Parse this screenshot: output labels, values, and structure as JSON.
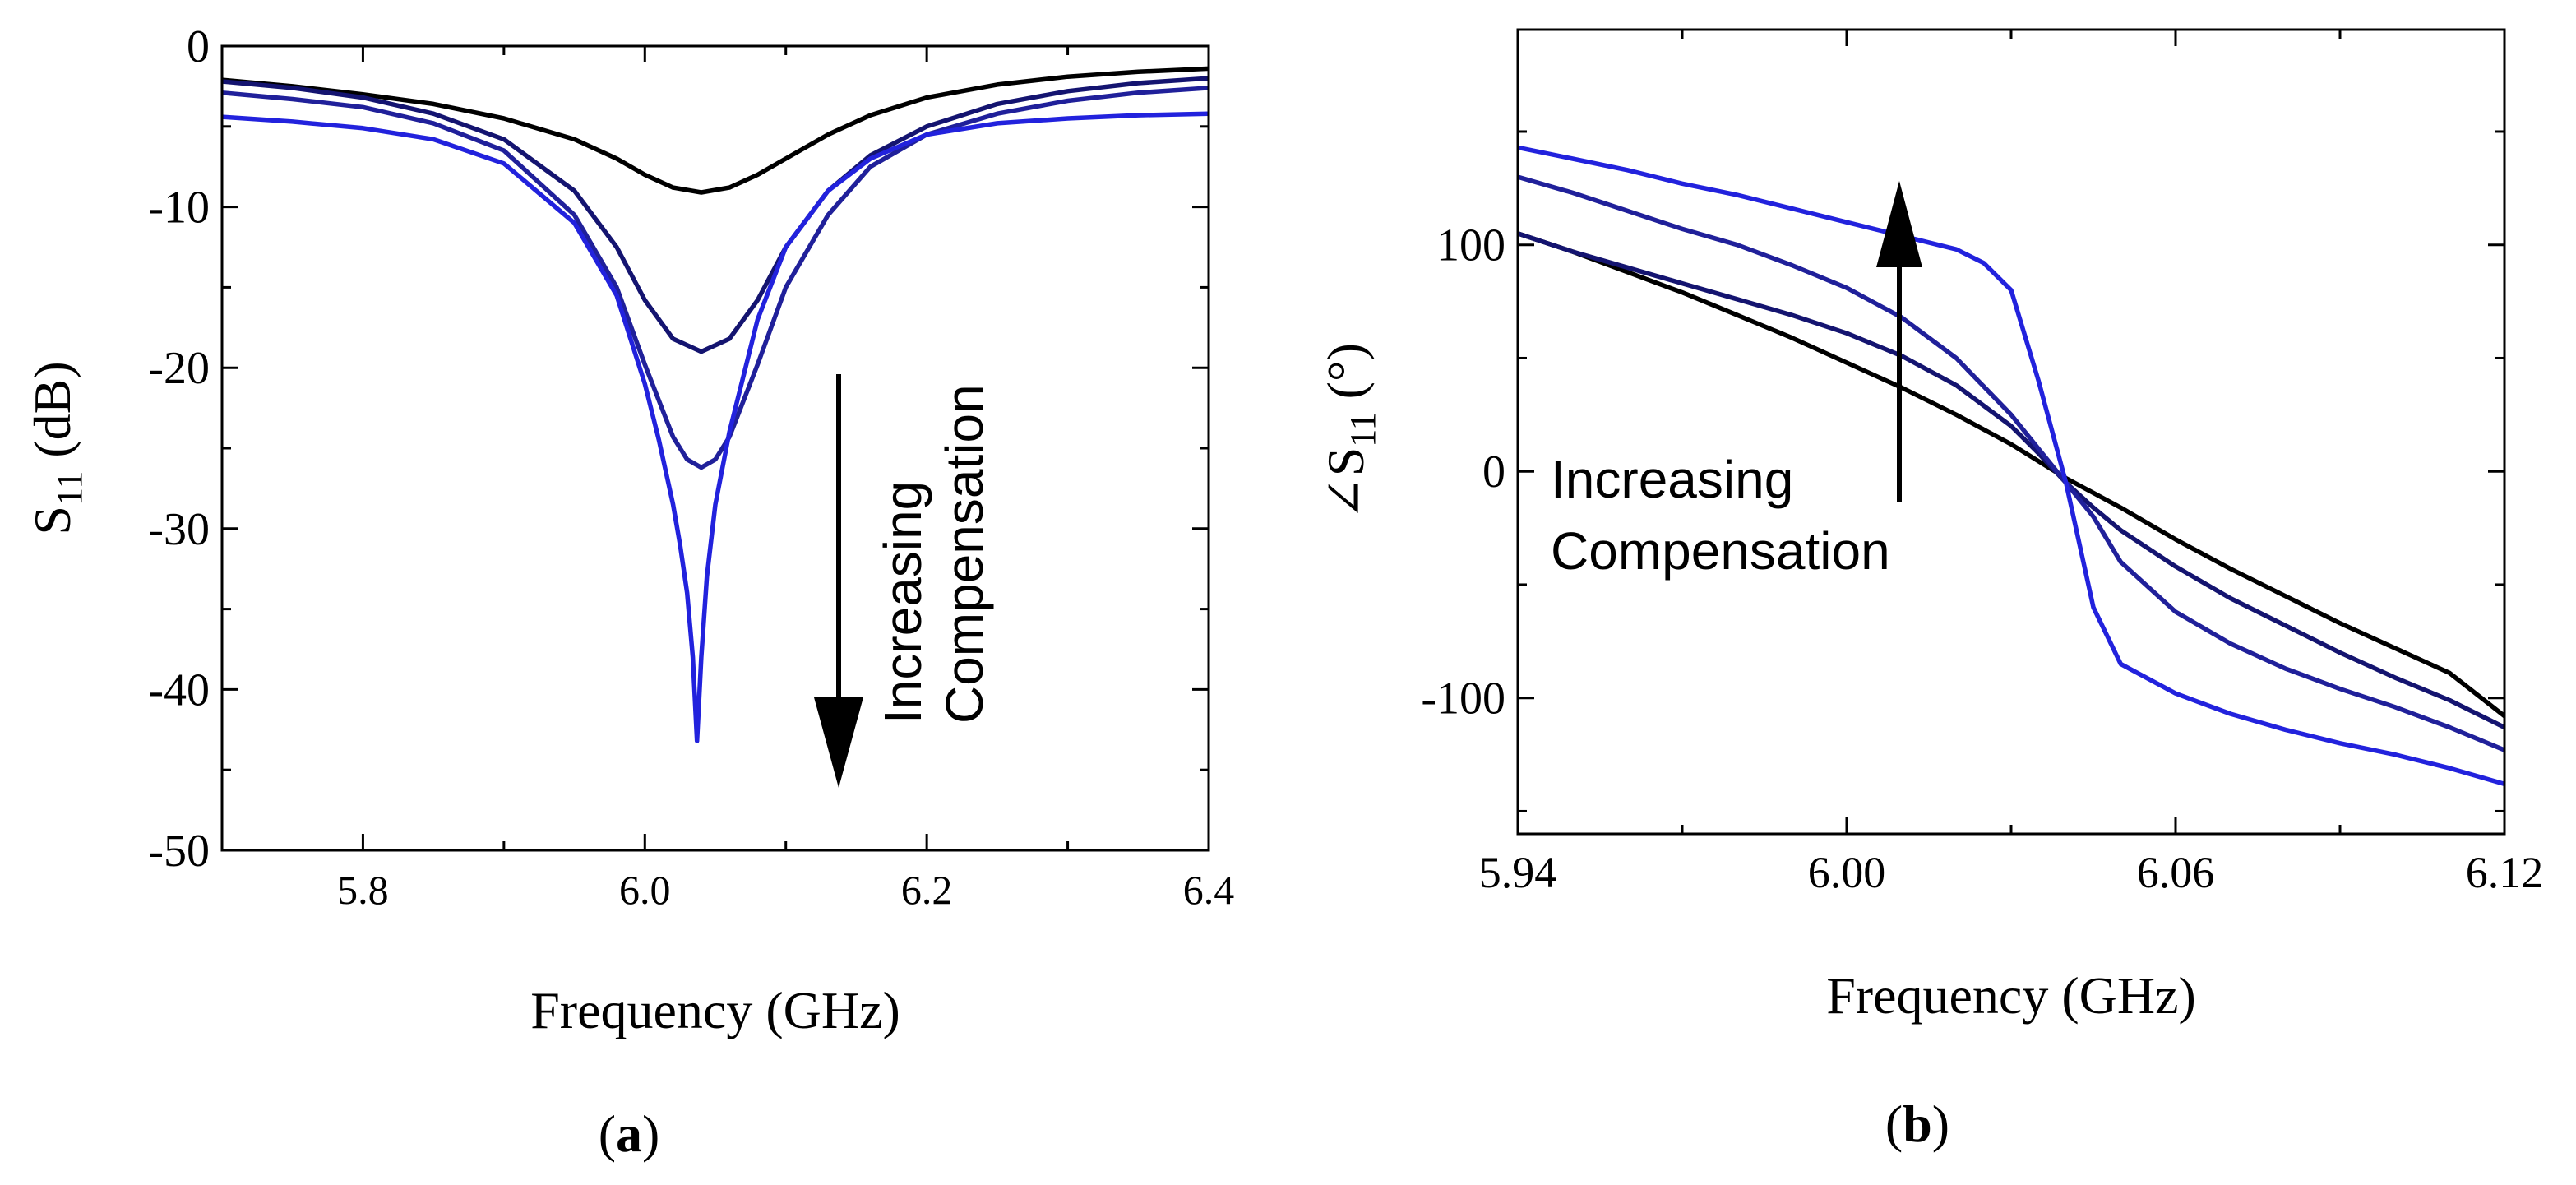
{
  "chart_data": [
    {
      "type": "line",
      "panel_label": "a",
      "xlabel": "Frequency (GHz)",
      "ylabel_main": "S",
      "ylabel_sub": "11",
      "ylabel_unit": " (dB)",
      "xlim": [
        5.7,
        6.4
      ],
      "ylim": [
        -50,
        0
      ],
      "xticks": [
        5.8,
        6.0,
        6.2,
        6.4
      ],
      "xtick_labels": [
        "5.8",
        "6.0",
        "6.2",
        "6.4"
      ],
      "yticks": [
        0,
        -10,
        -20,
        -30,
        -40,
        -50
      ],
      "ytick_labels": [
        "0",
        "-10",
        "-20",
        "-30",
        "-40",
        "-50"
      ],
      "annotation": [
        "Increasing",
        "Compensation"
      ],
      "series": [
        {
          "color": "#000000",
          "x": [
            5.7,
            5.75,
            5.8,
            5.85,
            5.9,
            5.95,
            5.98,
            6.0,
            6.02,
            6.04,
            6.06,
            6.08,
            6.1,
            6.13,
            6.16,
            6.2,
            6.25,
            6.3,
            6.35,
            6.4
          ],
          "values": [
            -2.1,
            -2.5,
            -3.0,
            -3.6,
            -4.5,
            -5.8,
            -7.0,
            -8.0,
            -8.8,
            -9.1,
            -8.8,
            -8.0,
            -7.0,
            -5.5,
            -4.3,
            -3.2,
            -2.4,
            -1.9,
            -1.6,
            -1.4
          ]
        },
        {
          "color": "#141470",
          "x": [
            5.7,
            5.75,
            5.8,
            5.85,
            5.9,
            5.95,
            5.98,
            6.0,
            6.02,
            6.04,
            6.06,
            6.08,
            6.1,
            6.13,
            6.16,
            6.2,
            6.25,
            6.3,
            6.35,
            6.4
          ],
          "values": [
            -2.2,
            -2.6,
            -3.2,
            -4.2,
            -5.8,
            -9.0,
            -12.5,
            -15.8,
            -18.2,
            -19.0,
            -18.2,
            -15.8,
            -12.5,
            -9.0,
            -6.8,
            -5.0,
            -3.6,
            -2.8,
            -2.3,
            -2.0
          ]
        },
        {
          "color": "#20209a",
          "x": [
            5.7,
            5.75,
            5.8,
            5.85,
            5.9,
            5.95,
            5.98,
            6.0,
            6.02,
            6.03,
            6.04,
            6.05,
            6.06,
            6.08,
            6.1,
            6.13,
            6.16,
            6.2,
            6.25,
            6.3,
            6.35,
            6.4
          ],
          "values": [
            -2.9,
            -3.3,
            -3.8,
            -4.8,
            -6.5,
            -10.5,
            -15.0,
            -19.8,
            -24.3,
            -25.7,
            -26.2,
            -25.7,
            -24.3,
            -19.8,
            -15.0,
            -10.5,
            -7.5,
            -5.5,
            -4.2,
            -3.4,
            -2.9,
            -2.6
          ]
        },
        {
          "color": "#2222dd",
          "x": [
            5.7,
            5.75,
            5.8,
            5.85,
            5.9,
            5.95,
            5.98,
            6.0,
            6.01,
            6.02,
            6.025,
            6.03,
            6.034,
            6.037,
            6.04,
            6.044,
            6.05,
            6.06,
            6.08,
            6.1,
            6.13,
            6.16,
            6.2,
            6.25,
            6.3,
            6.35,
            6.4
          ],
          "values": [
            -4.4,
            -4.7,
            -5.1,
            -5.8,
            -7.3,
            -11.0,
            -15.5,
            -21.0,
            -24.5,
            -28.5,
            -31.0,
            -34.0,
            -38.0,
            -43.2,
            -38.0,
            -33.0,
            -28.5,
            -24.0,
            -17.0,
            -12.5,
            -9.0,
            -7.0,
            -5.5,
            -4.8,
            -4.5,
            -4.3,
            -4.2
          ]
        }
      ]
    },
    {
      "type": "line",
      "panel_label": "b",
      "xlabel": "Frequency (GHz)",
      "ylabel_main": "∠S",
      "ylabel_sub": "11",
      "ylabel_unit": " (°)",
      "xlim": [
        5.94,
        6.12
      ],
      "ylim": [
        -160,
        195
      ],
      "xticks": [
        5.94,
        6.0,
        6.06,
        6.12
      ],
      "xtick_labels": [
        "5.94",
        "6.00",
        "6.06",
        "6.12"
      ],
      "yticks": [
        100,
        0,
        -100
      ],
      "ytick_labels": [
        "100",
        "0",
        "-100"
      ],
      "annotation": [
        "Increasing",
        "Compensation"
      ],
      "series": [
        {
          "color": "#000000",
          "x": [
            5.94,
            5.95,
            5.96,
            5.97,
            5.98,
            5.99,
            6.0,
            6.01,
            6.02,
            6.03,
            6.04,
            6.05,
            6.06,
            6.07,
            6.08,
            6.09,
            6.1,
            6.11,
            6.12
          ],
          "values": [
            105,
            97,
            88,
            79,
            69,
            59,
            48,
            37,
            25,
            12,
            -3,
            -16,
            -30,
            -43,
            -55,
            -67,
            -78,
            -89,
            -108
          ]
        },
        {
          "color": "#141470",
          "x": [
            5.94,
            5.95,
            5.96,
            5.97,
            5.98,
            5.99,
            6.0,
            6.01,
            6.02,
            6.03,
            6.035,
            6.04,
            6.045,
            6.05,
            6.06,
            6.07,
            6.08,
            6.09,
            6.1,
            6.11,
            6.12
          ],
          "values": [
            105,
            97,
            90,
            83,
            76,
            69,
            61,
            51,
            38,
            20,
            8,
            -5,
            -16,
            -26,
            -42,
            -56,
            -68,
            -80,
            -91,
            -101,
            -113
          ]
        },
        {
          "color": "#20209a",
          "x": [
            5.94,
            5.95,
            5.96,
            5.97,
            5.98,
            5.99,
            6.0,
            6.01,
            6.02,
            6.03,
            6.035,
            6.04,
            6.045,
            6.05,
            6.06,
            6.07,
            6.08,
            6.09,
            6.1,
            6.11,
            6.12
          ],
          "values": [
            130,
            123,
            115,
            107,
            100,
            91,
            81,
            68,
            50,
            25,
            10,
            -5,
            -20,
            -40,
            -62,
            -76,
            -87,
            -96,
            -104,
            -113,
            -123
          ]
        },
        {
          "color": "#2222dd",
          "x": [
            5.94,
            5.95,
            5.96,
            5.97,
            5.98,
            5.99,
            6.0,
            6.01,
            6.02,
            6.025,
            6.03,
            6.035,
            6.04,
            6.045,
            6.05,
            6.06,
            6.07,
            6.08,
            6.09,
            6.1,
            6.11,
            6.12
          ],
          "values": [
            143,
            138,
            133,
            127,
            122,
            116,
            110,
            104,
            98,
            92,
            80,
            40,
            -5,
            -60,
            -85,
            -98,
            -107,
            -114,
            -120,
            -125,
            -131,
            -138
          ]
        }
      ]
    }
  ]
}
